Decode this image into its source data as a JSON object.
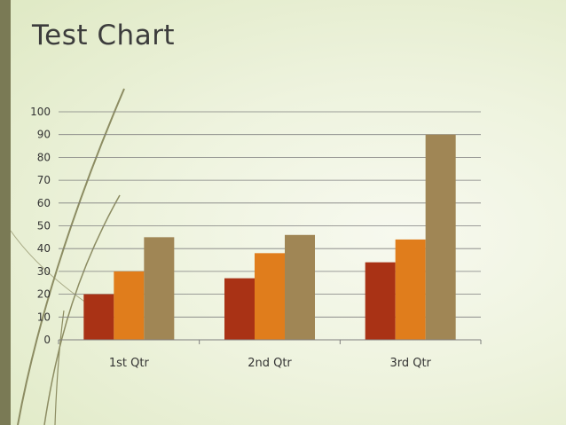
{
  "title": "Test Chart",
  "colors": {
    "accent_bar": "#7a7a55",
    "background": "#eef3de",
    "decoration_lines": "#8c8c62"
  },
  "chart_data": {
    "type": "bar",
    "title": "Test Chart",
    "categories": [
      "1st Qtr",
      "2nd Qtr",
      "3rd Qtr"
    ],
    "series": [
      {
        "color": "#a93215",
        "values": [
          20,
          27,
          34
        ]
      },
      {
        "color": "#e07d1c",
        "values": [
          30,
          38,
          44
        ]
      },
      {
        "color": "#a08655",
        "values": [
          45,
          46,
          90
        ]
      }
    ],
    "ylim": [
      0,
      100
    ],
    "yticks": [
      0,
      10,
      20,
      30,
      40,
      50,
      60,
      70,
      80,
      90,
      100
    ],
    "grid": true,
    "legend": "none",
    "xlabel": "",
    "ylabel": ""
  }
}
